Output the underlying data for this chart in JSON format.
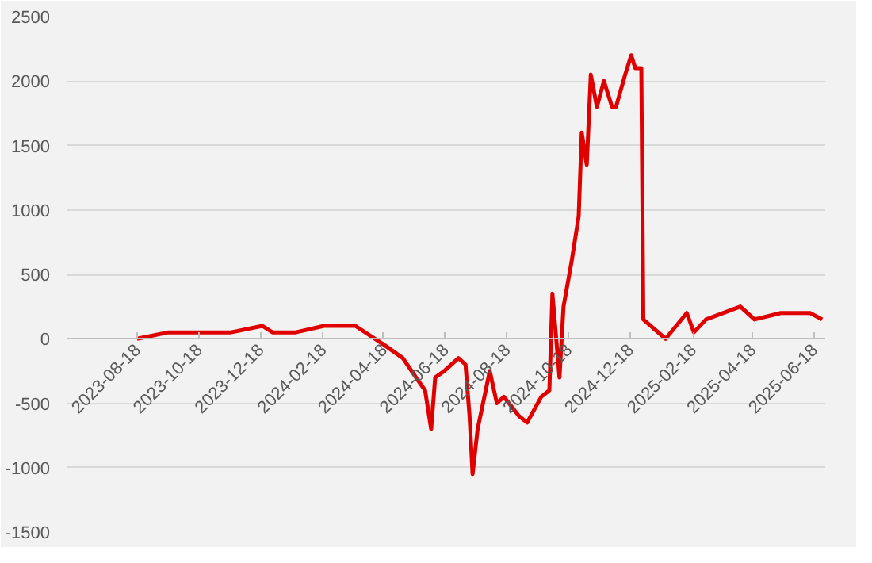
{
  "chart_data": {
    "type": "line",
    "x": [
      "2023-08-18",
      "2023-09-18",
      "2023-10-19",
      "2023-11-19",
      "2023-12-20",
      "2023-12-30",
      "2024-01-22",
      "2024-02-19",
      "2024-03-21",
      "2024-04-19",
      "2024-05-07",
      "2024-05-20",
      "2024-05-29",
      "2024-06-04",
      "2024-06-08",
      "2024-06-17",
      "2024-07-01",
      "2024-07-08",
      "2024-07-12",
      "2024-07-15",
      "2024-07-20",
      "2024-08-01",
      "2024-08-08",
      "2024-08-15",
      "2024-08-30",
      "2024-09-07",
      "2024-09-21",
      "2024-09-29",
      "2024-10-02",
      "2024-10-09",
      "2024-10-13",
      "2024-10-21",
      "2024-10-28",
      "2024-10-31",
      "2024-11-05",
      "2024-11-09",
      "2024-11-15",
      "2024-11-22",
      "2024-11-30",
      "2024-12-04",
      "2024-12-13",
      "2024-12-19",
      "2024-12-23",
      "2024-12-29",
      "2024-12-31",
      "2025-01-22",
      "2025-02-12",
      "2025-02-19",
      "2025-03-03",
      "2025-04-06",
      "2025-04-20",
      "2025-05-16",
      "2025-06-14",
      "2025-06-26"
    ],
    "series": [
      {
        "color": "#e00000",
        "values": [
          0,
          50,
          50,
          50,
          100,
          50,
          50,
          100,
          100,
          -50,
          -150,
          -300,
          -400,
          -700,
          -300,
          -250,
          -150,
          -200,
          -600,
          -1050,
          -700,
          -250,
          -500,
          -450,
          -600,
          -650,
          -450,
          -400,
          350,
          -300,
          250,
          600,
          950,
          1600,
          1350,
          2050,
          1800,
          2000,
          1800,
          1800,
          2050,
          2200,
          2100,
          2100,
          150,
          0,
          200,
          50,
          150,
          250,
          150,
          200,
          200,
          150
        ]
      }
    ],
    "xlim": [
      "2023-06-10",
      "2025-06-29"
    ],
    "xticks": [
      "2023-08-18",
      "2023-10-18",
      "2023-12-18",
      "2024-02-18",
      "2024-04-18",
      "2024-06-18",
      "2024-08-18",
      "2024-10-18",
      "2024-12-18",
      "2025-02-18",
      "2025-04-18",
      "2025-06-18"
    ],
    "ylim": [
      -1500,
      2500
    ],
    "yticks": [
      -1500,
      -1000,
      -500,
      0,
      500,
      1000,
      1500,
      2000,
      2500
    ],
    "grid": "y",
    "marker": "none",
    "line_style": "solid"
  }
}
